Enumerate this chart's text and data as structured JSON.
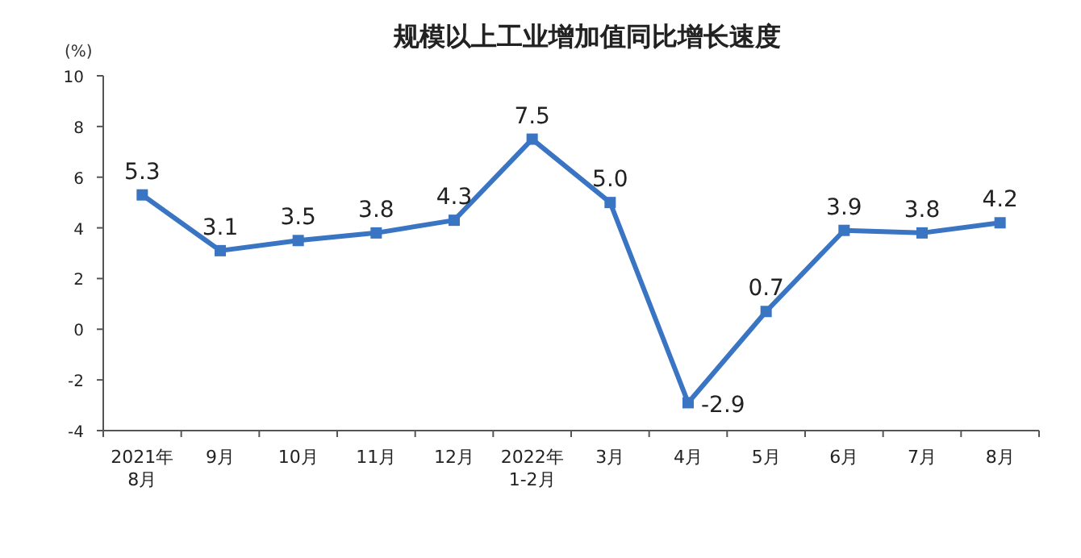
{
  "chart_data": {
    "type": "line",
    "title": "规模以上工业增加值同比增长速度",
    "ylabel": "(%)",
    "categories": [
      "2021年\n8月",
      "9月",
      "10月",
      "11月",
      "12月",
      "2022年\n1-2月",
      "3月",
      "4月",
      "5月",
      "6月",
      "7月",
      "8月"
    ],
    "series": [
      {
        "color": "#3a75c4",
        "values": [
          5.3,
          3.1,
          3.5,
          3.8,
          4.3,
          7.5,
          5.0,
          -2.9,
          0.7,
          3.9,
          3.8,
          4.2
        ],
        "value_labels": [
          "5.3",
          "3.1",
          "3.5",
          "3.8",
          "4.3",
          "7.5",
          "5.0",
          "-2.9",
          "0.7",
          "3.9",
          "3.8",
          "4.2"
        ]
      }
    ],
    "ylim": [
      -4,
      10
    ],
    "yticks": [
      -4,
      -2,
      0,
      2,
      4,
      6,
      8,
      10
    ],
    "marker": "square",
    "line_style": "solid",
    "grid": false
  }
}
